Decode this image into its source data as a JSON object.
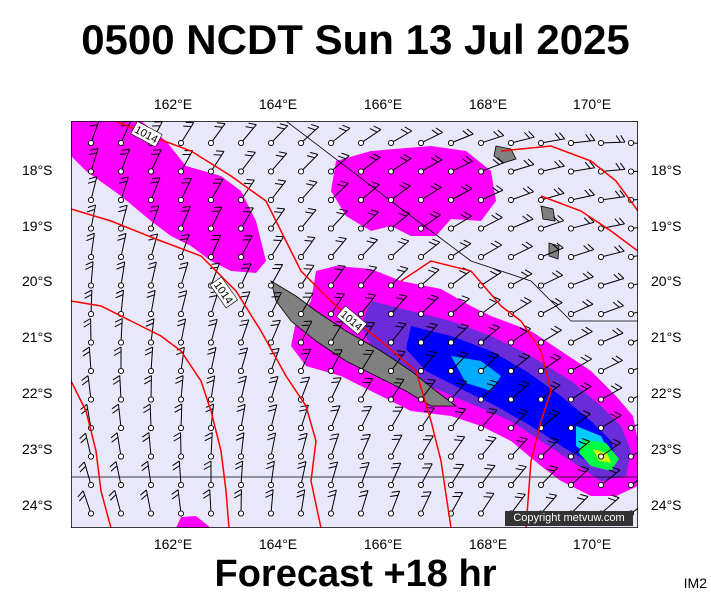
{
  "title": "0500 NCDT Sun 13 Jul 2025",
  "footer": "Forecast +18 hr",
  "image_code": "IM2",
  "copyright": "Copyright metvuw.com",
  "longitude_labels": [
    "162°E",
    "164°E",
    "166°E",
    "168°E",
    "170°E"
  ],
  "latitude_labels": [
    "18°S",
    "19°S",
    "20°S",
    "21°S",
    "22°S",
    "23°S",
    "24°S"
  ],
  "isobar_labels": [
    "1014",
    "1014",
    "1014"
  ],
  "colors": {
    "ocean": "#e8e8fa",
    "isobar": "#ff0000",
    "rain_light": "#ff00ff",
    "rain_medium": "#0000ff",
    "rain_heavy": "#00ff00",
    "land": "#808080"
  },
  "map_extent": {
    "lon": [
      160,
      171
    ],
    "lat": [
      -24.4,
      -17.1
    ]
  }
}
